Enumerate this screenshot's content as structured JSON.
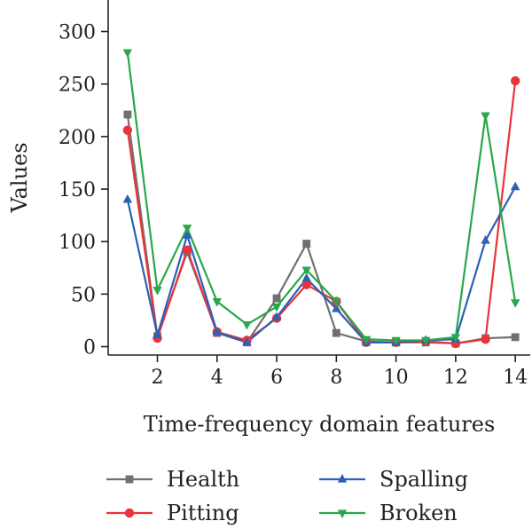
{
  "chart_data": {
    "type": "line",
    "title": "",
    "xlabel": "Time-frequency domain features",
    "ylabel": "Values",
    "x": [
      1,
      2,
      3,
      4,
      5,
      6,
      7,
      8,
      9,
      10,
      11,
      12,
      13,
      14
    ],
    "xlim": [
      0.35,
      14.5
    ],
    "ylim": [
      -8,
      330
    ],
    "xticks": [
      2,
      4,
      6,
      8,
      10,
      12,
      14
    ],
    "yticks": [
      0,
      50,
      100,
      150,
      200,
      250,
      300
    ],
    "grid": false,
    "legend_position": "bottom",
    "series": [
      {
        "name": "Health",
        "color": "#707070",
        "marker": "square",
        "values": [
          221,
          10,
          90,
          13,
          4,
          46,
          98,
          13,
          5,
          4,
          4,
          3,
          8,
          9
        ]
      },
      {
        "name": "Pitting",
        "color": "#e8343a",
        "marker": "circle",
        "values": [
          206,
          8,
          92,
          14,
          6,
          27,
          59,
          43,
          4,
          4,
          5,
          3,
          7,
          253
        ]
      },
      {
        "name": "Spalling",
        "color": "#2b5fb8",
        "marker": "triangle-up",
        "values": [
          140,
          11,
          106,
          14,
          4,
          28,
          65,
          36,
          4,
          4,
          6,
          7,
          101,
          152
        ]
      },
      {
        "name": "Broken",
        "color": "#27a84a",
        "marker": "triangle-down",
        "values": [
          280,
          54,
          113,
          43,
          21,
          38,
          73,
          43,
          7,
          6,
          6,
          9,
          220,
          42
        ]
      }
    ]
  }
}
